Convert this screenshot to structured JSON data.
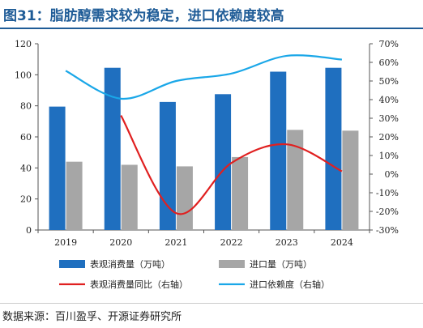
{
  "title": "图31：脂肪醇需求较为稳定，进口依赖度较高",
  "source": "数据来源：百川盈孚、开源证券研究所",
  "chart_data": {
    "type": "bar",
    "categories": [
      "2019",
      "2020",
      "2021",
      "2022",
      "2023",
      "2024"
    ],
    "ylim_left": [
      0,
      120
    ],
    "yticks_left": [
      0,
      20,
      40,
      60,
      80,
      100,
      120
    ],
    "ylim_right": [
      -30,
      70
    ],
    "yticks_right": [
      -30,
      -20,
      -10,
      0,
      10,
      20,
      30,
      40,
      50,
      60,
      70
    ],
    "yticks_right_labels": [
      "-30%",
      "-20%",
      "-10%",
      "0%",
      "10%",
      "20%",
      "30%",
      "40%",
      "50%",
      "60%",
      "70%"
    ],
    "series": [
      {
        "name": "表观消费量（万吨）",
        "type": "bar",
        "axis": "left",
        "color": "#1f6fbf",
        "values": [
          79.5,
          104.5,
          82.5,
          87.5,
          102,
          104.5
        ]
      },
      {
        "name": "进口量（万吨）",
        "type": "bar",
        "axis": "left",
        "color": "#a6a6a6",
        "values": [
          44,
          42,
          41,
          47,
          64.5,
          64
        ]
      },
      {
        "name": "表观消费量同比（右轴）",
        "type": "line",
        "axis": "right",
        "color": "#e02020",
        "values": [
          null,
          31.5,
          -21,
          6,
          16,
          1.5
        ]
      },
      {
        "name": "进口依赖度（右轴）",
        "type": "line",
        "axis": "right",
        "color": "#1aa7e8",
        "values": [
          55.5,
          40.5,
          50,
          54,
          63.5,
          61.5
        ]
      }
    ],
    "legend_position": "bottom",
    "grid": false
  }
}
